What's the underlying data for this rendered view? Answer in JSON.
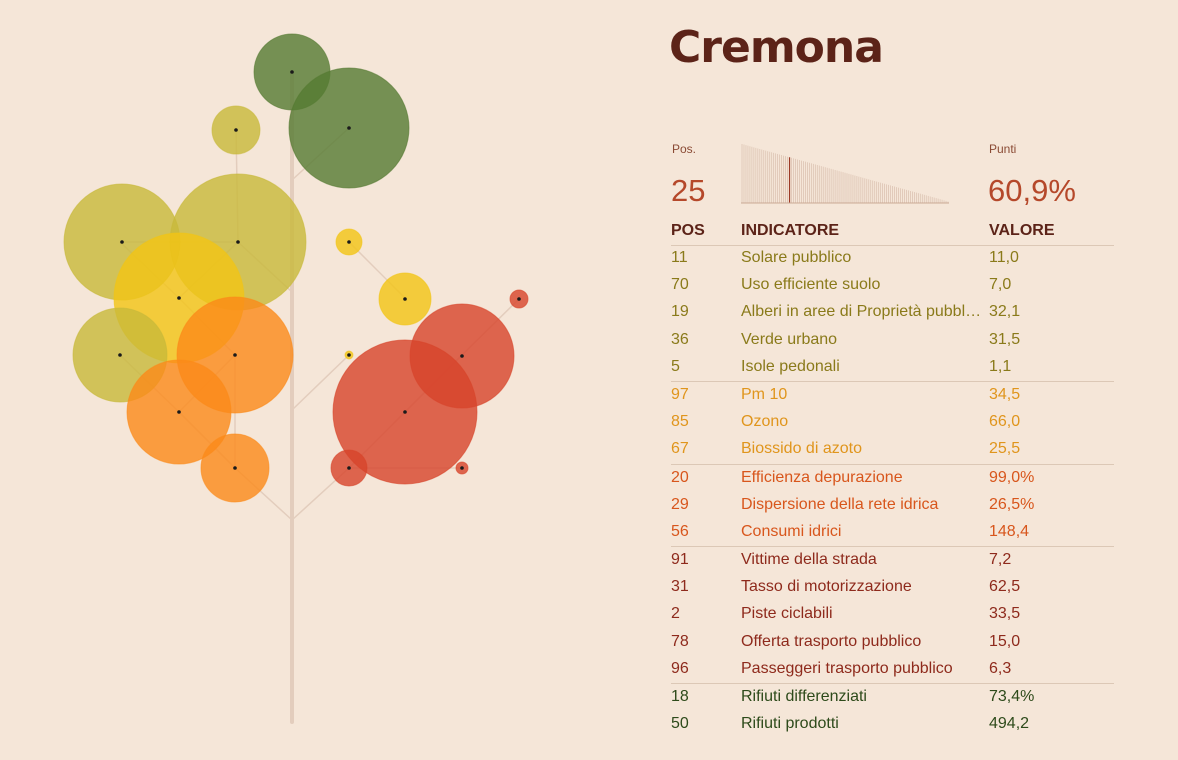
{
  "city": "Cremona",
  "summary": {
    "pos_label": "Pos.",
    "pos_value": "25",
    "points_label": "Punti",
    "points_value": "60,9%",
    "rank_position": 25,
    "rank_total": 105
  },
  "table": {
    "headers": {
      "pos": "POS",
      "indicator": "INDICATORE",
      "value": "VALORE"
    },
    "groups": [
      {
        "color": "#8a7a1a",
        "rows": [
          {
            "pos": "11",
            "indicator": "Solare pubblico",
            "value": "11,0"
          },
          {
            "pos": "70",
            "indicator": "Uso efficiente suolo",
            "value": "7,0"
          },
          {
            "pos": "19",
            "indicator": "Alberi in aree di Proprietà pubblica",
            "value": "32,1"
          },
          {
            "pos": "36",
            "indicator": "Verde urbano",
            "value": "31,5"
          },
          {
            "pos": "5",
            "indicator": "Isole pedonali",
            "value": "1,1"
          }
        ]
      },
      {
        "color": "#e0951c",
        "rows": [
          {
            "pos": "97",
            "indicator": "Pm 10",
            "value": "34,5"
          },
          {
            "pos": "85",
            "indicator": "Ozono",
            "value": "66,0"
          },
          {
            "pos": "67",
            "indicator": "Biossido di azoto",
            "value": "25,5"
          }
        ]
      },
      {
        "color": "#d8561c",
        "rows": [
          {
            "pos": "20",
            "indicator": "Efficienza depurazione",
            "value": "99,0%"
          },
          {
            "pos": "29",
            "indicator": "Dispersione della rete idrica",
            "value": "26,5%"
          },
          {
            "pos": "56",
            "indicator": "Consumi idrici",
            "value": "148,4"
          }
        ]
      },
      {
        "color": "#8e2a1c",
        "rows": [
          {
            "pos": "91",
            "indicator": "Vittime della strada",
            "value": "7,2"
          },
          {
            "pos": "31",
            "indicator": "Tasso di motorizzazione",
            "value": "62,5"
          },
          {
            "pos": "2",
            "indicator": "Piste ciclabili",
            "value": "33,5"
          },
          {
            "pos": "78",
            "indicator": "Offerta trasporto pubblico",
            "value": "15,0"
          },
          {
            "pos": "96",
            "indicator": "Passeggeri trasporto pubblico",
            "value": "6,3"
          }
        ]
      },
      {
        "color": "#2d4a1a",
        "rows": [
          {
            "pos": "18",
            "indicator": "Rifiuti differenziati",
            "value": "73,4%"
          },
          {
            "pos": "50",
            "indicator": "Rifiuti prodotti",
            "value": "494,2"
          }
        ]
      }
    ]
  },
  "tree": {
    "colors": {
      "dark_green": "#557a32",
      "olive": "#c8b93a",
      "yellow": "#f2c414",
      "orange": "#fb8a19",
      "red": "#d7442a",
      "trunk": "#e3cdbd"
    }
  }
}
